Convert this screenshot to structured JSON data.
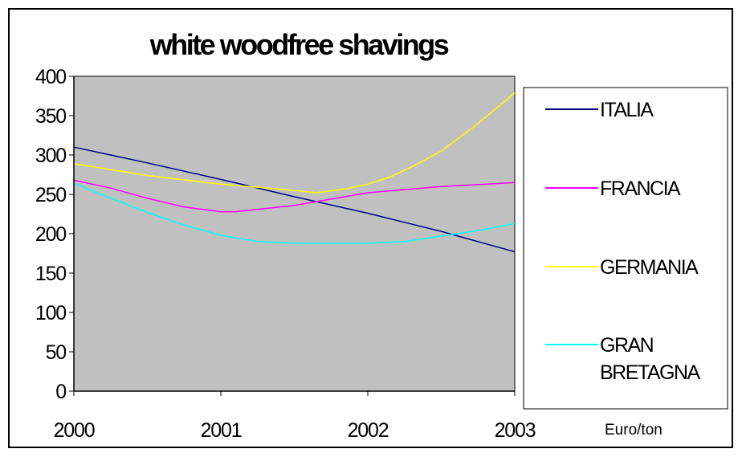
{
  "chart_data": {
    "type": "line",
    "title": "white woodfree shavings",
    "xlabel": "",
    "ylabel": "",
    "unit_label": "Euro/ton",
    "x_ticks": [
      "2000",
      "2001",
      "2002",
      "2003"
    ],
    "y_ticks": [
      "0",
      "50",
      "100",
      "150",
      "200",
      "250",
      "300",
      "350",
      "400"
    ],
    "xlim": [
      2000,
      2003
    ],
    "ylim": [
      0,
      400
    ],
    "plot_background": "#c0c0c0",
    "grid": false,
    "legend_position": "right",
    "series": [
      {
        "name": "ITALIA",
        "color": "#000080",
        "points": [
          [
            2000,
            310
          ],
          [
            2000.5,
            290
          ],
          [
            2001,
            269
          ],
          [
            2001.5,
            247
          ],
          [
            2002,
            226
          ],
          [
            2002.5,
            203
          ],
          [
            2003,
            177
          ]
        ]
      },
      {
        "name": "FRANCIA",
        "color": "#ff00ff",
        "points": [
          [
            2000,
            268
          ],
          [
            2000.25,
            258
          ],
          [
            2000.5,
            245
          ],
          [
            2000.75,
            234
          ],
          [
            2001,
            228
          ],
          [
            2001.1,
            228
          ],
          [
            2001.5,
            236
          ],
          [
            2001.75,
            244
          ],
          [
            2002,
            252
          ],
          [
            2002.5,
            260
          ],
          [
            2003,
            265
          ]
        ]
      },
      {
        "name": "GERMANIA",
        "color": "#ffff00",
        "points": [
          [
            2000,
            289
          ],
          [
            2000.5,
            274
          ],
          [
            2001,
            263
          ],
          [
            2001.5,
            255
          ],
          [
            2001.65,
            252
          ],
          [
            2001.85,
            257
          ],
          [
            2002,
            263
          ],
          [
            2002.15,
            272
          ],
          [
            2002.3,
            285
          ],
          [
            2002.5,
            305
          ],
          [
            2002.75,
            340
          ],
          [
            2003,
            379
          ]
        ]
      },
      {
        "name": "GRAN BRETAGNA",
        "name_lines": [
          "GRAN",
          "BRETAGNA"
        ],
        "color": "#00ffff",
        "points": [
          [
            2000,
            264
          ],
          [
            2000.25,
            245
          ],
          [
            2000.5,
            227
          ],
          [
            2000.75,
            211
          ],
          [
            2001,
            198
          ],
          [
            2001.25,
            190
          ],
          [
            2001.5,
            188
          ],
          [
            2002,
            188
          ],
          [
            2002.25,
            190
          ],
          [
            2002.5,
            197
          ],
          [
            2002.75,
            204
          ],
          [
            2003,
            213
          ]
        ]
      }
    ]
  }
}
